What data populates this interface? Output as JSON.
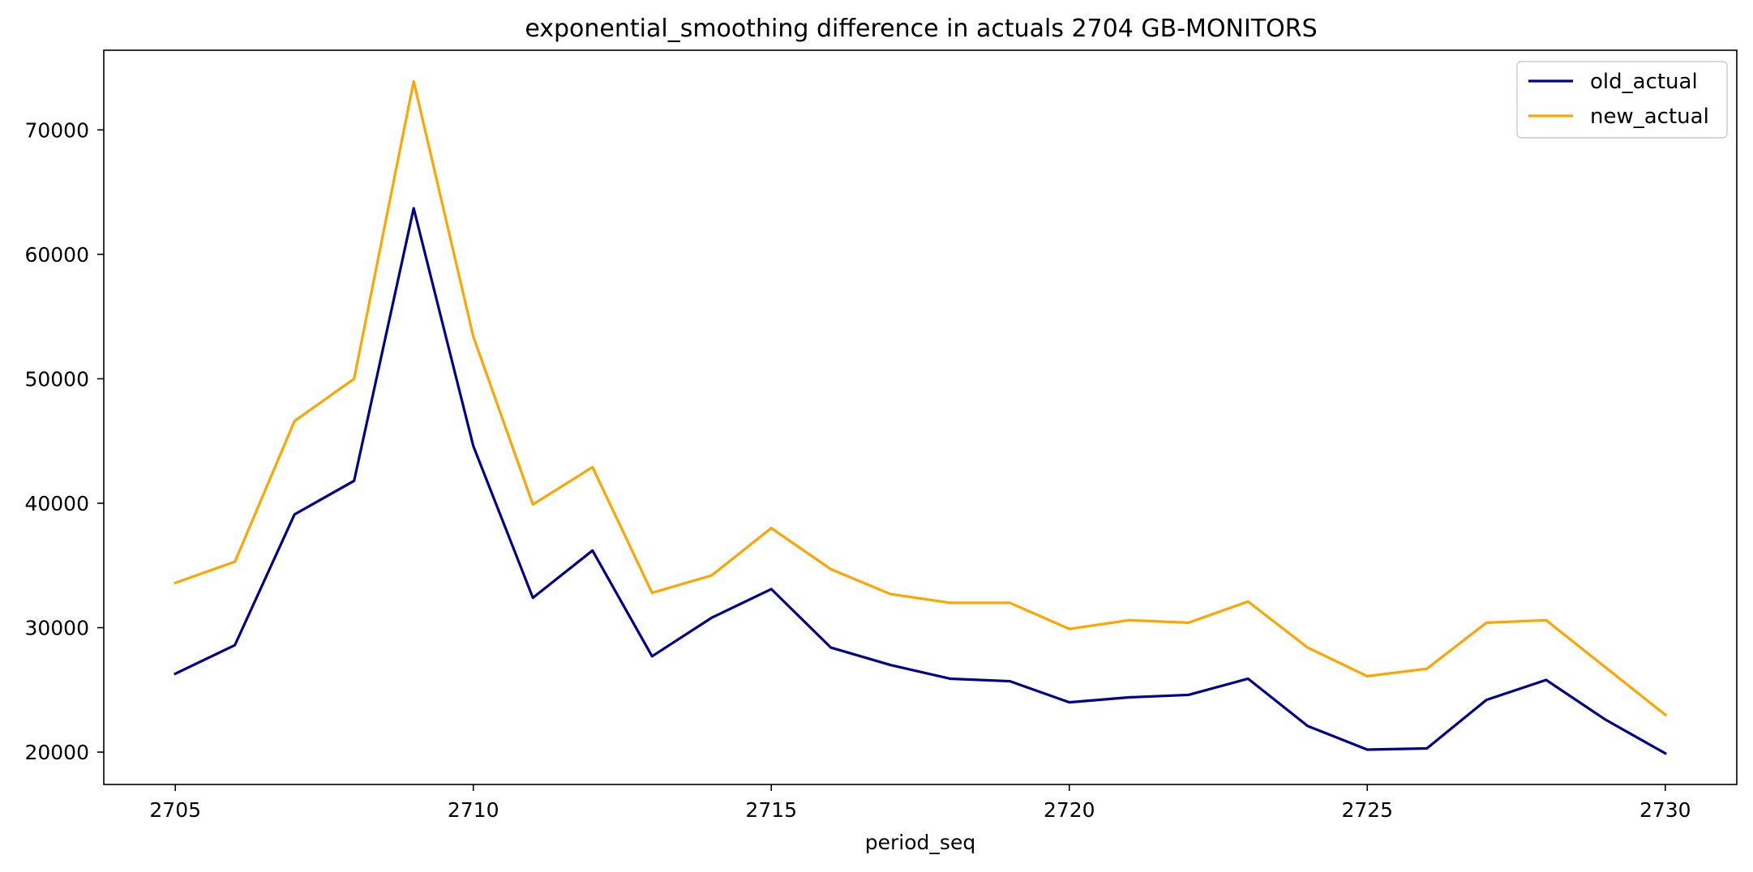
{
  "chart_data": {
    "type": "line",
    "title": "exponential_smoothing difference in actuals 2704 GB-MONITORS",
    "xlabel": "period_seq",
    "ylabel": "",
    "x": [
      2705,
      2706,
      2707,
      2708,
      2709,
      2710,
      2711,
      2712,
      2713,
      2714,
      2715,
      2716,
      2717,
      2718,
      2719,
      2720,
      2721,
      2722,
      2723,
      2724,
      2725,
      2726,
      2727,
      2728,
      2729,
      2730
    ],
    "xlim": [
      2703.8,
      2731.2
    ],
    "ylim": [
      17400,
      76400
    ],
    "xticks": [
      2705,
      2710,
      2715,
      2720,
      2725,
      2730
    ],
    "yticks": [
      20000,
      30000,
      40000,
      50000,
      60000,
      70000
    ],
    "grid": false,
    "legend_position": "top-right",
    "series": [
      {
        "name": "old_actual",
        "color": "#00008b",
        "values": [
          26300,
          28600,
          39100,
          41800,
          63700,
          44600,
          32400,
          36200,
          27700,
          30800,
          33100,
          28400,
          27000,
          25900,
          25700,
          24000,
          24400,
          24600,
          25900,
          22100,
          20200,
          20300,
          24200,
          25800,
          22600,
          19900
        ]
      },
      {
        "name": "new_actual",
        "color": "#ffa500",
        "values": [
          33600,
          35300,
          46600,
          50000,
          73900,
          53400,
          39900,
          42900,
          32800,
          34200,
          38000,
          34700,
          32700,
          32000,
          32000,
          29900,
          30600,
          30400,
          32100,
          28400,
          26100,
          26700,
          30400,
          30600,
          26800,
          23000
        ]
      }
    ]
  }
}
